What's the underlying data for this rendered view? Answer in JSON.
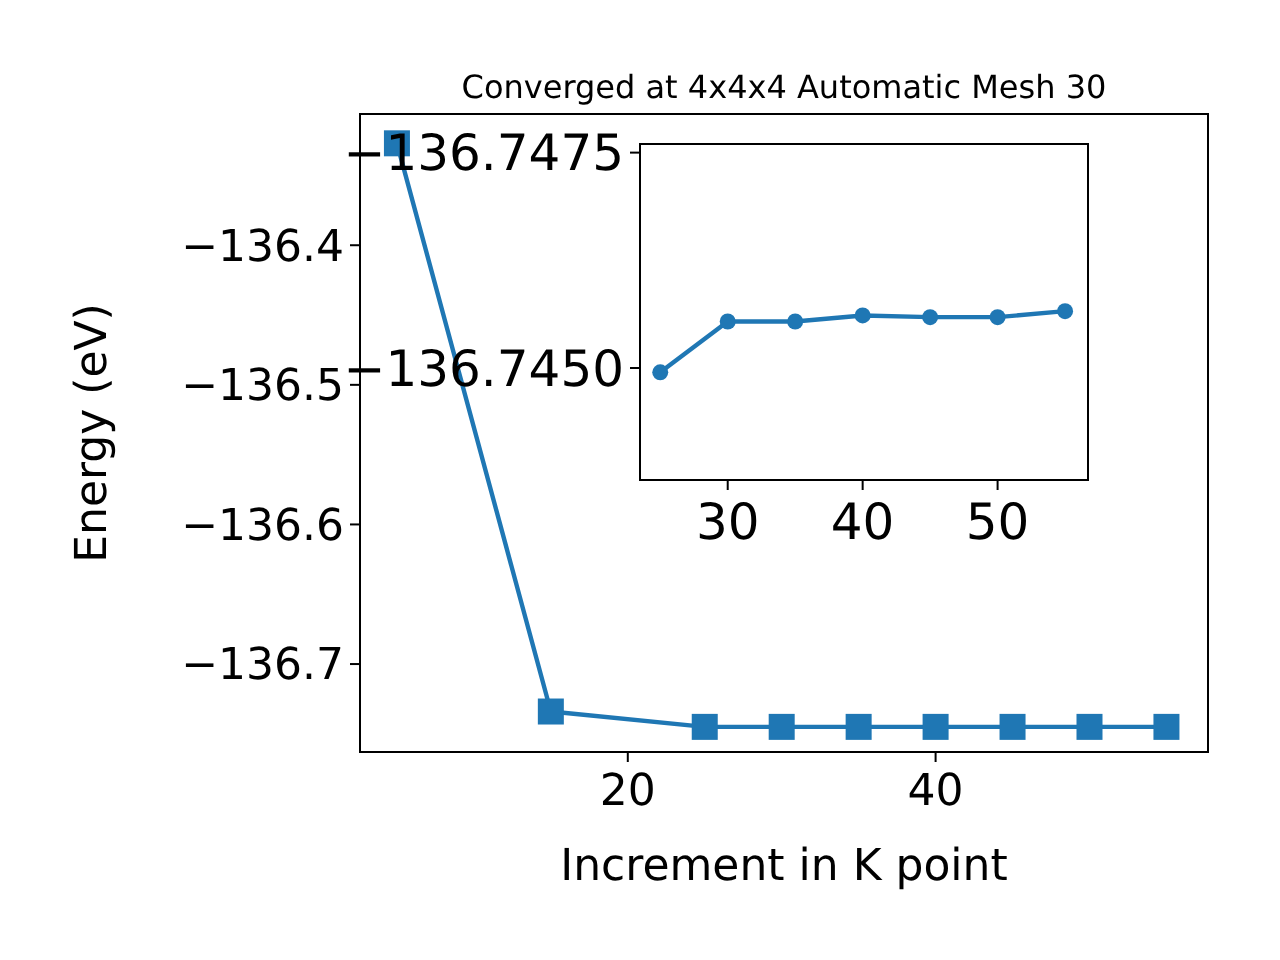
{
  "chart_data": [
    {
      "type": "line",
      "title": "Converged at 4x4x4 Automatic Mesh 30",
      "xlabel": "Increment in K point",
      "ylabel": "Energy (eV)",
      "x": [
        5,
        15,
        25,
        30,
        35,
        40,
        45,
        50,
        55
      ],
      "series": [
        {
          "color": "#1f77b4",
          "values": [
            -136.327,
            -136.734,
            -136.745,
            -136.745,
            -136.745,
            -136.745,
            -136.745,
            -136.745,
            -136.745
          ]
        }
      ],
      "xlim": [
        2.6,
        57.7
      ],
      "xticks": [
        20,
        40
      ],
      "ylim": [
        -136.763,
        -136.306
      ],
      "yticks": [
        -136.4,
        -136.5,
        -136.6,
        -136.7
      ],
      "marker": "square"
    },
    {
      "type": "line",
      "x": [
        25,
        30,
        35,
        40,
        45,
        50,
        55
      ],
      "series": [
        {
          "color": "#1f77b4",
          "values": [
            -136.74495,
            -136.74554,
            -136.74554,
            -136.74561,
            -136.74559,
            -136.74559,
            -136.74566
          ]
        }
      ],
      "xlim": [
        23.5,
        56.7
      ],
      "xticks": [
        30,
        40,
        50
      ],
      "ylim": [
        -136.7437,
        -136.7476
      ],
      "yticks": [
        {
          "value": -136.745,
          "label": "−136.7450"
        },
        {
          "value": -136.7475,
          "label": "−136.7475"
        }
      ],
      "marker": "circle"
    }
  ]
}
